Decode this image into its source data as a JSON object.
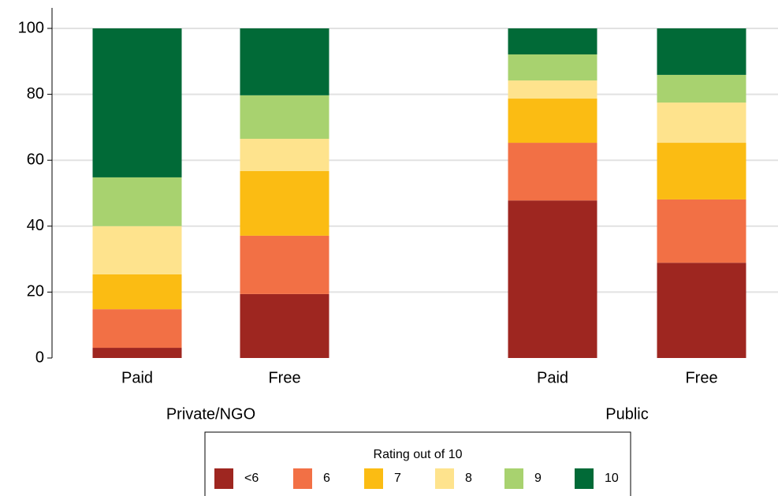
{
  "chart_data": {
    "type": "stacked_bar",
    "categories": [
      "Paid",
      "Free",
      "Paid",
      "Free"
    ],
    "groups": [
      "Private/NGO",
      "Public"
    ],
    "series": [
      {
        "name": "<6",
        "color": "#9e2620",
        "values": [
          3.1,
          19.4,
          47.8,
          28.9
        ]
      },
      {
        "name": "6",
        "color": "#f27045",
        "values": [
          11.7,
          17.7,
          17.5,
          19.2
        ]
      },
      {
        "name": "7",
        "color": "#fbbc13",
        "values": [
          10.6,
          19.6,
          13.4,
          17.2
        ]
      },
      {
        "name": "8",
        "color": "#fee38d",
        "values": [
          14.6,
          9.8,
          5.5,
          12.2
        ]
      },
      {
        "name": "9",
        "color": "#a8d26f",
        "values": [
          14.8,
          13.2,
          7.9,
          8.4
        ]
      },
      {
        "name": "10",
        "color": "#016a37",
        "values": [
          45.2,
          20.3,
          7.9,
          14.1
        ]
      }
    ],
    "legend_title": "Rating out of 10",
    "ylim": [
      0,
      100
    ],
    "yticks": [
      0,
      20,
      40,
      60,
      80,
      100
    ],
    "grid": true
  }
}
